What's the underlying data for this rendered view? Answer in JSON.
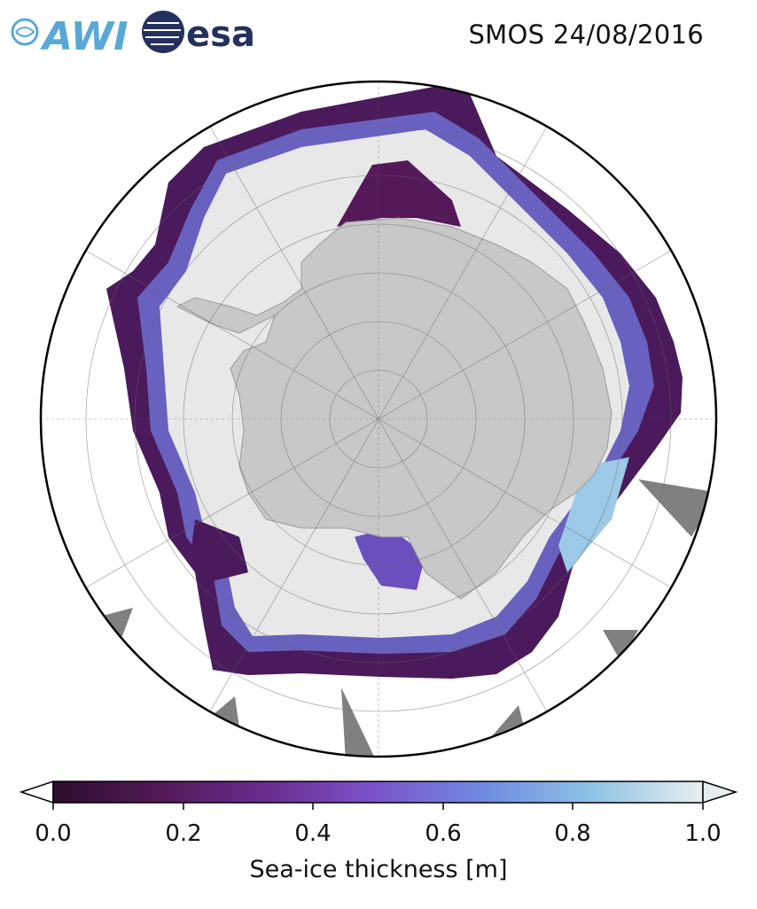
{
  "logos": {
    "alfred_wegener": "AWI",
    "agency": "esa"
  },
  "title": "SMOS 24/08/2016",
  "colorbar": {
    "label": "Sea-ice thickness [m]",
    "ticks": [
      "0.0",
      "0.2",
      "0.4",
      "0.6",
      "0.8",
      "1.0"
    ],
    "extend": "both",
    "colors": [
      "#2b0e2c",
      "#55195a",
      "#6b2d8f",
      "#7b55cc",
      "#6f8de0",
      "#8ec3e6",
      "#e8eef0"
    ]
  },
  "map": {
    "projection": "south polar stereographic",
    "colors": {
      "land": "#c8c8c8",
      "thick_ice": "#e8e8e8",
      "no_data": "#808080",
      "ocean": "#ffffff",
      "thin_ice": "#4a1a5c"
    }
  }
}
